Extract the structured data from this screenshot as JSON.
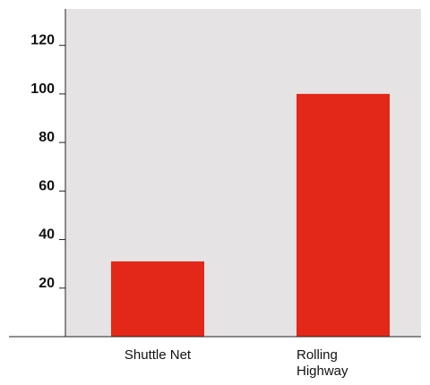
{
  "chart_data": {
    "type": "bar",
    "categories": [
      [
        "Shuttle Net"
      ],
      [
        "Rolling",
        "Highway"
      ]
    ],
    "values": [
      31,
      100
    ],
    "title": "",
    "xlabel": "",
    "ylabel": "",
    "ylim": [
      0,
      135
    ],
    "yticks": [
      20,
      40,
      60,
      80,
      100,
      120
    ],
    "grid": false,
    "colors": {
      "bar": "#e32718",
      "plot_background": "#e5e3e4",
      "axis": "#222222"
    }
  }
}
